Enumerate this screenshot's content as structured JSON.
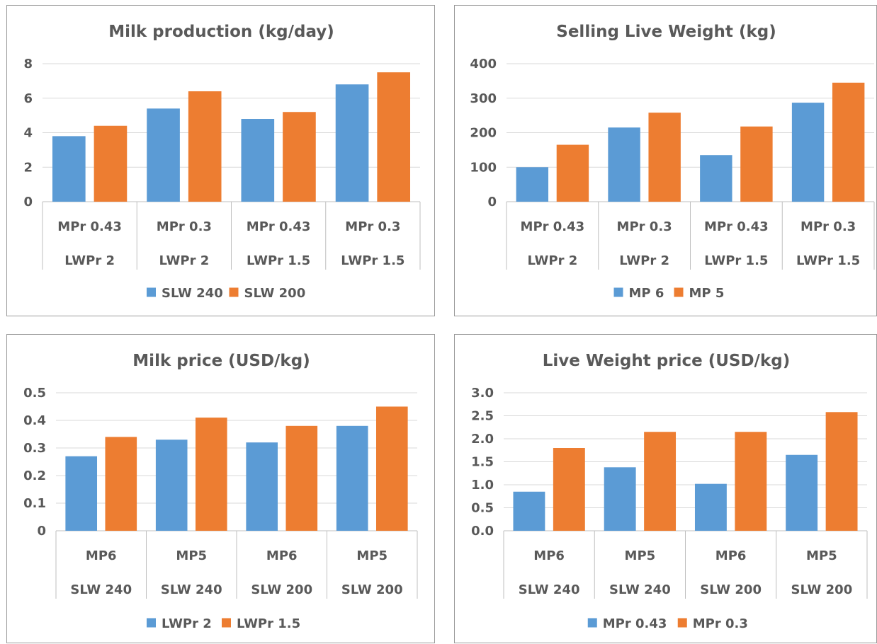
{
  "colors": {
    "series1": "#5b9bd5",
    "series2": "#ed7d31"
  },
  "chart_data": [
    {
      "type": "bar",
      "title": "Milk production (kg/day)",
      "categories": [
        [
          "MPr 0.43",
          "LWPr 2"
        ],
        [
          "MPr 0.3",
          "LWPr 2"
        ],
        [
          "MPr 0.43",
          "LWPr 1.5"
        ],
        [
          "MPr 0.3",
          "LWPr 1.5"
        ]
      ],
      "series": [
        {
          "name": "SLW 240",
          "values": [
            3.8,
            5.4,
            4.8,
            6.8
          ]
        },
        {
          "name": "SLW 200",
          "values": [
            4.4,
            6.4,
            5.2,
            7.5
          ]
        }
      ],
      "yticks": [
        "0",
        "2",
        "4",
        "6",
        "8"
      ],
      "ylim": [
        0,
        8
      ],
      "xlabel": "",
      "ylabel": "",
      "grid": true,
      "legend": "bottom"
    },
    {
      "type": "bar",
      "title": "Selling Live Weight (kg)",
      "categories": [
        [
          "MPr 0.43",
          "LWPr 2"
        ],
        [
          "MPr 0.3",
          "LWPr 2"
        ],
        [
          "MPr 0.43",
          "LWPr 1.5"
        ],
        [
          "MPr 0.3",
          "LWPr 1.5"
        ]
      ],
      "series": [
        {
          "name": "MP 6",
          "values": [
            100,
            215,
            135,
            287
          ]
        },
        {
          "name": "MP 5",
          "values": [
            165,
            258,
            218,
            345
          ]
        }
      ],
      "yticks": [
        "0",
        "100",
        "200",
        "300",
        "400"
      ],
      "ylim": [
        0,
        400
      ],
      "xlabel": "",
      "ylabel": "",
      "grid": true,
      "legend": "bottom"
    },
    {
      "type": "bar",
      "title": "Milk price (USD/kg)",
      "categories": [
        [
          "MP6",
          "SLW 240"
        ],
        [
          "MP5",
          "SLW 240"
        ],
        [
          "MP6",
          "SLW 200"
        ],
        [
          "MP5",
          "SLW 200"
        ]
      ],
      "series": [
        {
          "name": "LWPr 2",
          "values": [
            0.27,
            0.33,
            0.32,
            0.38
          ]
        },
        {
          "name": "LWPr 1.5",
          "values": [
            0.34,
            0.41,
            0.38,
            0.45
          ]
        }
      ],
      "yticks": [
        "0",
        "0.1",
        "0.2",
        "0.3",
        "0.4",
        "0.5"
      ],
      "ylim": [
        0,
        0.5
      ],
      "xlabel": "",
      "ylabel": "",
      "grid": true,
      "legend": "bottom"
    },
    {
      "type": "bar",
      "title": "Live Weight price (USD/kg)",
      "categories": [
        [
          "MP6",
          "SLW 240"
        ],
        [
          "MP5",
          "SLW 240"
        ],
        [
          "MP6",
          "SLW 200"
        ],
        [
          "MP5",
          "SLW 200"
        ]
      ],
      "series": [
        {
          "name": "MPr 0.43",
          "values": [
            0.85,
            1.38,
            1.02,
            1.65
          ]
        },
        {
          "name": "MPr 0.3",
          "values": [
            1.8,
            2.15,
            2.15,
            2.58
          ]
        }
      ],
      "yticks": [
        "0.0",
        "0.5",
        "1.0",
        "1.5",
        "2.0",
        "2.5",
        "3.0"
      ],
      "ylim": [
        0,
        3
      ],
      "xlabel": "",
      "ylabel": "",
      "grid": true,
      "legend": "bottom"
    }
  ]
}
